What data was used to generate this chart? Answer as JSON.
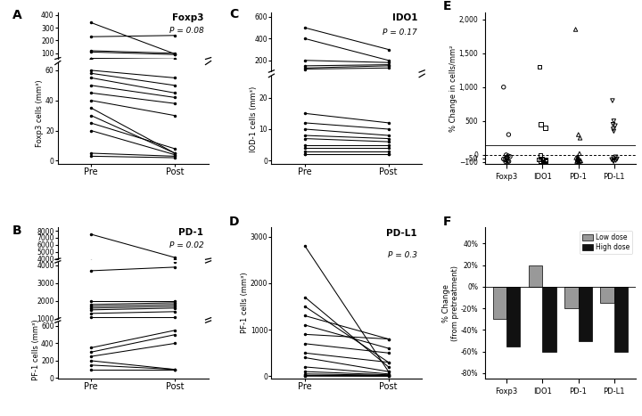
{
  "foxp3_pre": [
    230,
    340,
    110,
    120,
    60,
    58,
    55,
    50,
    45,
    40,
    35,
    30,
    25,
    20,
    5,
    3
  ],
  "foxp3_post": [
    240,
    95,
    90,
    100,
    55,
    50,
    45,
    42,
    38,
    30,
    5,
    5,
    8,
    4,
    3,
    2
  ],
  "foxp3_pval": "P = 0.08",
  "foxp3_title": "Foxp3",
  "foxp3_ylabel": "Foxp3 cells (mm³)",
  "pd1_pre": [
    7500,
    3700,
    2000,
    1800,
    1700,
    1600,
    1500,
    1300,
    1100,
    350,
    300,
    250,
    200,
    150,
    100
  ],
  "pd1_post": [
    4200,
    3900,
    2000,
    1900,
    1800,
    1700,
    1600,
    1400,
    1100,
    550,
    500,
    400,
    100,
    100,
    100
  ],
  "pd1_pval": "P = 0.02",
  "pd1_title": "PD-1",
  "pd1_ylabel": "PF-1 cells (mm³)",
  "ido1_pre": [
    500,
    400,
    200,
    150,
    130,
    120,
    15,
    12,
    10,
    8,
    7,
    5,
    4,
    3,
    2,
    2
  ],
  "ido1_post": [
    300,
    200,
    180,
    160,
    150,
    130,
    12,
    10,
    8,
    7,
    6,
    5,
    4,
    3,
    2,
    2
  ],
  "ido1_pval": "P = 0.17",
  "ido1_title": "IDO1",
  "ido1_ylabel": "IOD-1 cells (mm³)",
  "pdl1_pre": [
    2800,
    1700,
    1500,
    1300,
    1100,
    900,
    700,
    500,
    400,
    200,
    100,
    50,
    20,
    10,
    5
  ],
  "pdl1_post": [
    100,
    200,
    300,
    800,
    600,
    800,
    500,
    300,
    100,
    50,
    30,
    20,
    10,
    5,
    2
  ],
  "pdl1_pval": "P = 0.3",
  "pdl1_title": "PD-L1",
  "pdl1_ylabel": "PF-1 cells (mm³)",
  "pct_foxp3": [
    1000,
    300,
    0,
    -15,
    -25,
    -35,
    -50,
    -60,
    -70,
    -80,
    -90,
    -95,
    -100
  ],
  "pct_ido1": [
    1300,
    450,
    400,
    0,
    -60,
    -65,
    -70,
    -75,
    -80,
    -85,
    -90,
    -95
  ],
  "pct_pd1": [
    1850,
    300,
    250,
    20,
    -30,
    -40,
    -50,
    -60,
    -70,
    -80,
    -85,
    -90,
    -95,
    -100
  ],
  "pct_pdl1": [
    800,
    500,
    450,
    430,
    380,
    350,
    -30,
    -55,
    -60,
    -70,
    -80,
    -90,
    -95
  ],
  "bar_categories": [
    "Foxp3",
    "IDO1",
    "PD-1",
    "PD-L1"
  ],
  "bar_low_dose": [
    -30,
    20,
    -20,
    -15
  ],
  "bar_high_dose": [
    -55,
    -60,
    -50,
    -60
  ],
  "bar_low_color": "#999999",
  "bar_high_color": "#111111"
}
